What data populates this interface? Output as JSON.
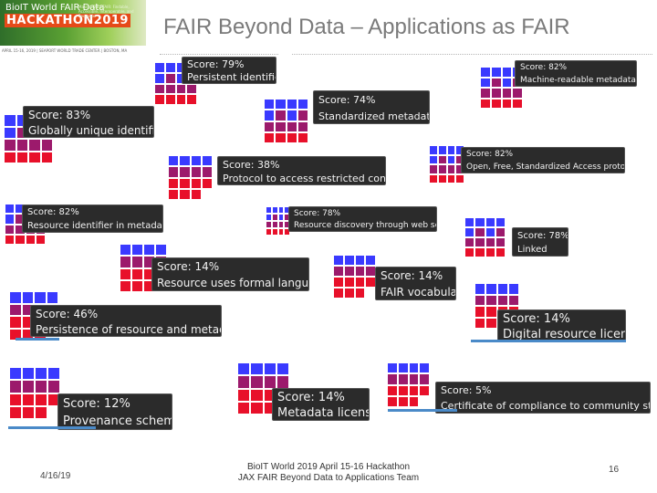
{
  "logo": {
    "line1": "BioIT World FAIR Data",
    "line2": "HACKATHON2019",
    "small": "Making Data FAIR: Findable, Accessible, Interoperable, and Reusable"
  },
  "header": {
    "title": "FAIR Beyond Data – Applications as FAIR",
    "date_bar": "APRIL 15-16, 2019 | SEAPORT WORLD TRADE CENTER | BOSTON, MA"
  },
  "colors": {
    "blue": "#3a3aff",
    "purple": "#9c1a6c",
    "red": "#e8102a",
    "label_bg": "#2b2b2b",
    "underline": "#4a8ac8"
  },
  "scores": [
    {
      "score_text": "Score: 79%",
      "name": "Persistent identifier",
      "score": 79
    },
    {
      "score_text": "Score: 82%",
      "name": "Machine-readable metadata",
      "score": 82
    },
    {
      "score_text": "Score: 74%",
      "name": "Standardized metadata",
      "score": 74
    },
    {
      "score_text": "Score: 83%",
      "name": "Globally unique identifier",
      "score": 83
    },
    {
      "score_text": "Score: 82%",
      "name": "Open, Free, Standardized Access protocol",
      "score": 82
    },
    {
      "score_text": "Score: 38%",
      "name": "Protocol to access restricted content",
      "score": 38
    },
    {
      "score_text": "Score: 82%",
      "name": "Resource identifier in metadata",
      "score": 82
    },
    {
      "score_text": "Score: 78%",
      "name": "Resource discovery through web search",
      "score": 78
    },
    {
      "score_text": "Score: 78%",
      "name": "Linked",
      "score": 78
    },
    {
      "score_text": "Score: 14%",
      "name": "Resource uses formal language",
      "score": 14
    },
    {
      "score_text": "Score: 14%",
      "name": "FAIR vocabulary",
      "score": 14
    },
    {
      "score_text": "Score: 46%",
      "name": "Persistence of resource and metadata",
      "score": 46
    },
    {
      "score_text": "Score: 14%",
      "name": "Digital resource license",
      "score": 14
    },
    {
      "score_text": "Score: 12%",
      "name": "Provenance scheme",
      "score": 12
    },
    {
      "score_text": "Score: 14%",
      "name": "Metadata license",
      "score": 14
    },
    {
      "score_text": "Score: 5%",
      "name": "Certificate of compliance to community standard",
      "score": 5
    }
  ],
  "footer": {
    "date": "4/16/19",
    "line1": "BioIT World 2019 April 15-16 Hackathon",
    "line2": "JAX FAIR Beyond Data to Applications Team",
    "page": "16"
  }
}
